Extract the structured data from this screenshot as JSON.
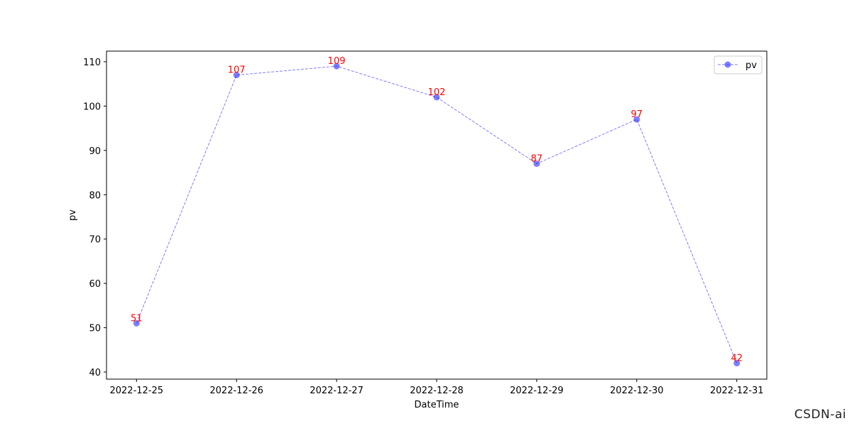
{
  "chart_data": {
    "type": "line",
    "title": "",
    "xlabel": "DateTime",
    "ylabel": "pv",
    "categories": [
      "2022-12-25",
      "2022-12-26",
      "2022-12-27",
      "2022-12-28",
      "2022-12-29",
      "2022-12-30",
      "2022-12-31"
    ],
    "series": [
      {
        "name": "pv",
        "values": [
          51,
          107,
          109,
          102,
          87,
          97,
          42
        ]
      }
    ],
    "data_labels": [
      "51",
      "107",
      "109",
      "102",
      "87",
      "97",
      "42"
    ],
    "ylim": [
      38.4,
      112.4
    ],
    "yticks": [
      40,
      50,
      60,
      70,
      80,
      90,
      100,
      110
    ],
    "grid": false,
    "legend_position": "upper right",
    "line_style": "dashed",
    "marker": "circle",
    "colors": {
      "series": "#0000ff",
      "data_labels": "#ff0000",
      "axes": "#000000"
    }
  },
  "watermark": "CSDN-ai"
}
